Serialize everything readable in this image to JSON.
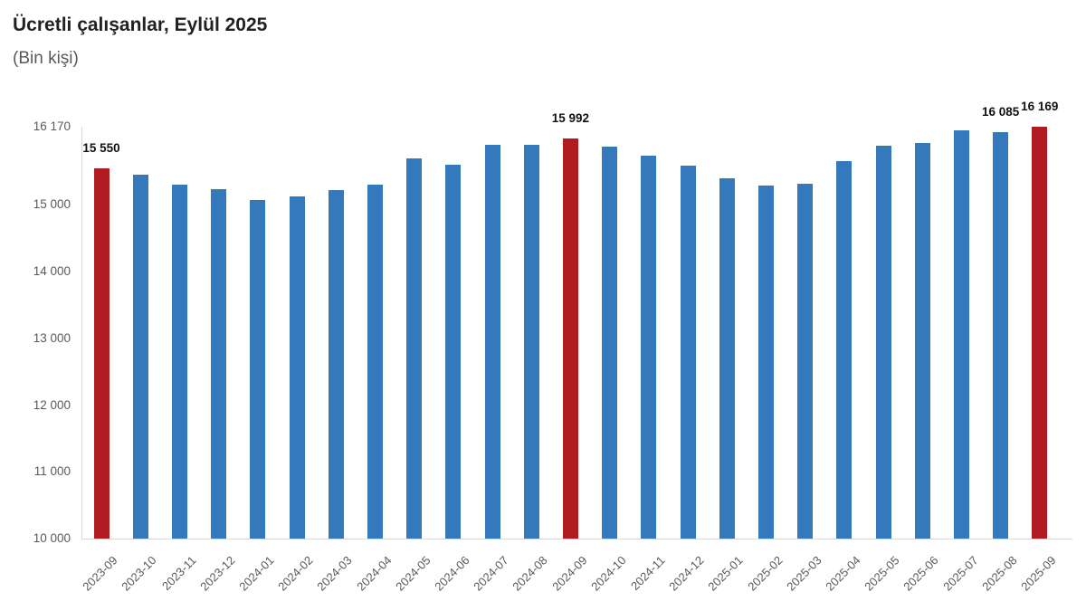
{
  "header": {
    "title": "Ücretli çalışanlar, Eylül 2025",
    "subtitle": "(Bin kişi)"
  },
  "chart_data": {
    "type": "bar",
    "title": "Ücretli çalışanlar, Eylül 2025",
    "subtitle": "(Bin kişi)",
    "xlabel": "",
    "ylabel": "Bin kişi",
    "grid": false,
    "legend": false,
    "categories": [
      "2023-09",
      "2023-10",
      "2023-11",
      "2023-12",
      "2024-01",
      "2024-02",
      "2024-03",
      "2024-04",
      "2024-05",
      "2024-06",
      "2024-07",
      "2024-08",
      "2024-09",
      "2024-10",
      "2024-11",
      "2024-12",
      "2025-01",
      "2025-02",
      "2025-03",
      "2025-04",
      "2025-05",
      "2025-06",
      "2025-07",
      "2025-08",
      "2025-09"
    ],
    "values": [
      15550,
      15450,
      15300,
      15230,
      15070,
      15120,
      15225,
      15300,
      15700,
      15605,
      15905,
      15900,
      15992,
      15865,
      15740,
      15585,
      15395,
      15290,
      15320,
      15660,
      15890,
      15925,
      16115,
      16085,
      16169
    ],
    "highlight_indices": [
      0,
      12,
      24
    ],
    "data_labels": {
      "0": "15 550",
      "12": "15 992",
      "23": "16 085",
      "24": "16 169"
    },
    "colors": {
      "bar": "#3579BD",
      "highlight": "#B01B21",
      "axis_line": "#d9d9d9",
      "tick_text": "#595959",
      "label_text": "#111111"
    },
    "y_axis": {
      "min": 10000,
      "max": 16170,
      "ticks": [
        16170,
        15000,
        14000,
        13000,
        12000,
        11000,
        10000
      ],
      "tick_labels": [
        "16 170",
        "15 000",
        "14 000",
        "13 000",
        "12 000",
        "11 000",
        "10 000"
      ]
    }
  }
}
